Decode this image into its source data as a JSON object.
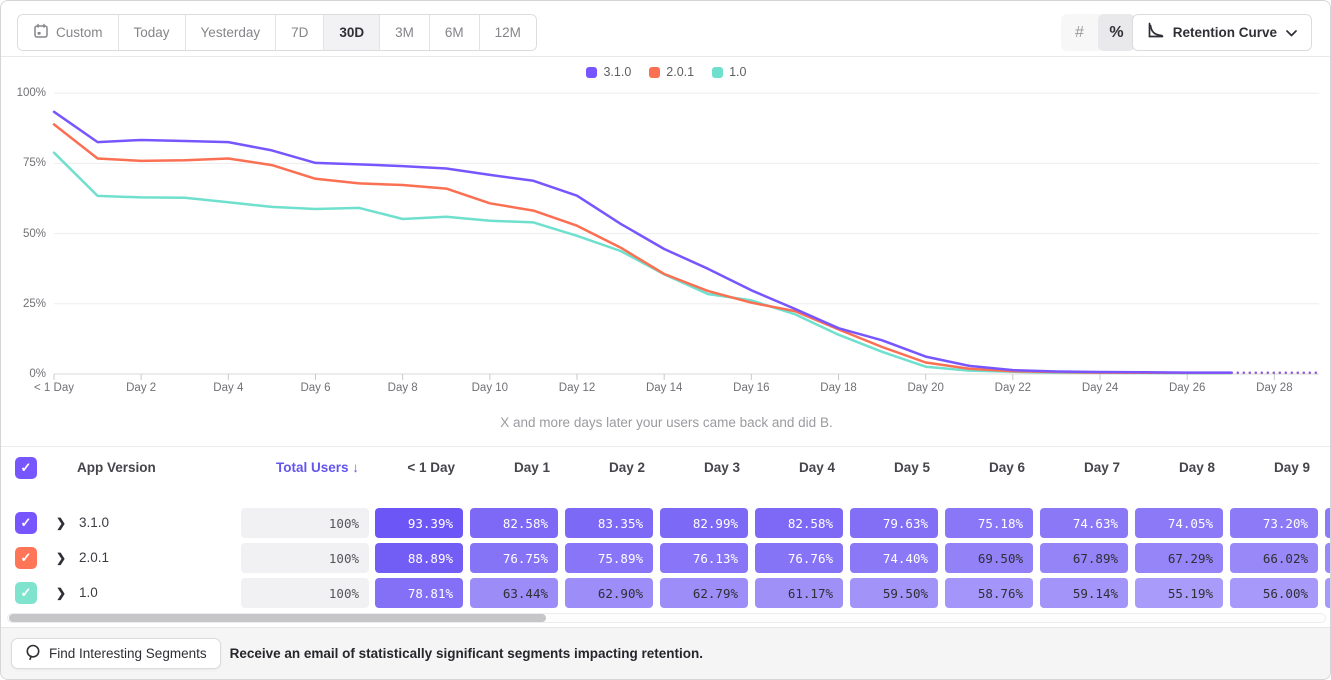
{
  "toolbar": {
    "date_ranges": [
      "Custom",
      "Today",
      "Yesterday",
      "7D",
      "30D",
      "3M",
      "6M",
      "12M"
    ],
    "selected_range": "30D",
    "value_mode": {
      "options": [
        "#",
        "%"
      ],
      "selected": "%"
    },
    "chart_type_label": "Retention Curve"
  },
  "colors": {
    "accent_purple": "#7856FF",
    "cell_base_rgb": "98,74,244",
    "grid": "#ededef",
    "axis": "#d8d8db"
  },
  "chart_data": {
    "type": "line",
    "subtitle": "X and more days later your users came back and did B.",
    "ylabel_ticks": [
      "100%",
      "75%",
      "50%",
      "25%",
      "0%"
    ],
    "ylim": [
      0,
      100
    ],
    "x_tick_days": [
      0,
      2,
      4,
      6,
      8,
      10,
      12,
      14,
      16,
      18,
      20,
      22,
      24,
      26,
      28
    ],
    "x_tick_labels": [
      "< 1 Day",
      "Day 2",
      "Day 4",
      "Day 6",
      "Day 8",
      "Day 10",
      "Day 12",
      "Day 14",
      "Day 16",
      "Day 18",
      "Day 20",
      "Day 22",
      "Day 24",
      "Day 26",
      "Day 28"
    ],
    "grid": true,
    "legend_position": "top-center",
    "dashed_tail_from_day": 27,
    "series": [
      {
        "name": "3.1.0",
        "color": "#7856FF",
        "values": [
          93.39,
          82.58,
          83.35,
          82.99,
          82.58,
          79.63,
          75.18,
          74.63,
          74.05,
          73.2,
          70.9,
          68.8,
          63.5,
          53.5,
          44.5,
          37.5,
          29.8,
          23.2,
          16.3,
          12.0,
          6.2,
          2.9,
          1.4,
          0.9,
          0.7,
          0.6,
          0.5,
          0.5
        ]
      },
      {
        "name": "2.0.1",
        "color": "#FB6F52",
        "values": [
          88.89,
          76.75,
          75.89,
          76.13,
          76.76,
          74.4,
          69.5,
          67.89,
          67.29,
          66.02,
          60.8,
          58.2,
          52.8,
          45.0,
          35.6,
          29.6,
          25.4,
          22.4,
          15.9,
          9.6,
          4.1,
          1.9,
          1.0,
          0.7,
          0.5,
          0.45,
          0.4,
          0.4
        ]
      },
      {
        "name": "1.0",
        "color": "#6FE0CE",
        "values": [
          78.81,
          63.44,
          62.9,
          62.79,
          61.17,
          59.5,
          58.76,
          59.14,
          55.19,
          56.0,
          54.6,
          54.0,
          49.2,
          43.8,
          35.5,
          28.5,
          26.2,
          21.3,
          14.0,
          7.9,
          2.6,
          1.2,
          0.8,
          0.5,
          0.4,
          0.35,
          0.3,
          0.3
        ]
      }
    ]
  },
  "table": {
    "header": {
      "app_version": "App Version",
      "total_users": "Total Users",
      "sort_arrow": "↓",
      "day_columns": [
        "< 1 Day",
        "Day 1",
        "Day 2",
        "Day 3",
        "Day 4",
        "Day 5",
        "Day 6",
        "Day 7",
        "Day 8",
        "Day 9"
      ]
    },
    "rows": [
      {
        "label": "3.1.0",
        "color": "#7856FF",
        "total": "100%",
        "values": [
          "93.39%",
          "82.58%",
          "83.35%",
          "82.99%",
          "82.58%",
          "79.63%",
          "75.18%",
          "74.63%",
          "74.05%",
          "73.20%"
        ]
      },
      {
        "label": "2.0.1",
        "color": "#FF7557",
        "total": "100%",
        "values": [
          "88.89%",
          "76.75%",
          "75.89%",
          "76.13%",
          "76.76%",
          "74.40%",
          "69.50%",
          "67.89%",
          "67.29%",
          "66.02%"
        ]
      },
      {
        "label": "1.0",
        "color": "#7FE3CD",
        "total": "100%",
        "values": [
          "78.81%",
          "63.44%",
          "62.90%",
          "62.79%",
          "61.17%",
          "59.50%",
          "58.76%",
          "59.14%",
          "55.19%",
          "56.00%"
        ]
      }
    ],
    "checkmark": "✓",
    "chevron": "❯"
  },
  "footer": {
    "button_label": "Find Interesting Segments",
    "message": "Receive an email of statistically significant segments impacting retention."
  }
}
